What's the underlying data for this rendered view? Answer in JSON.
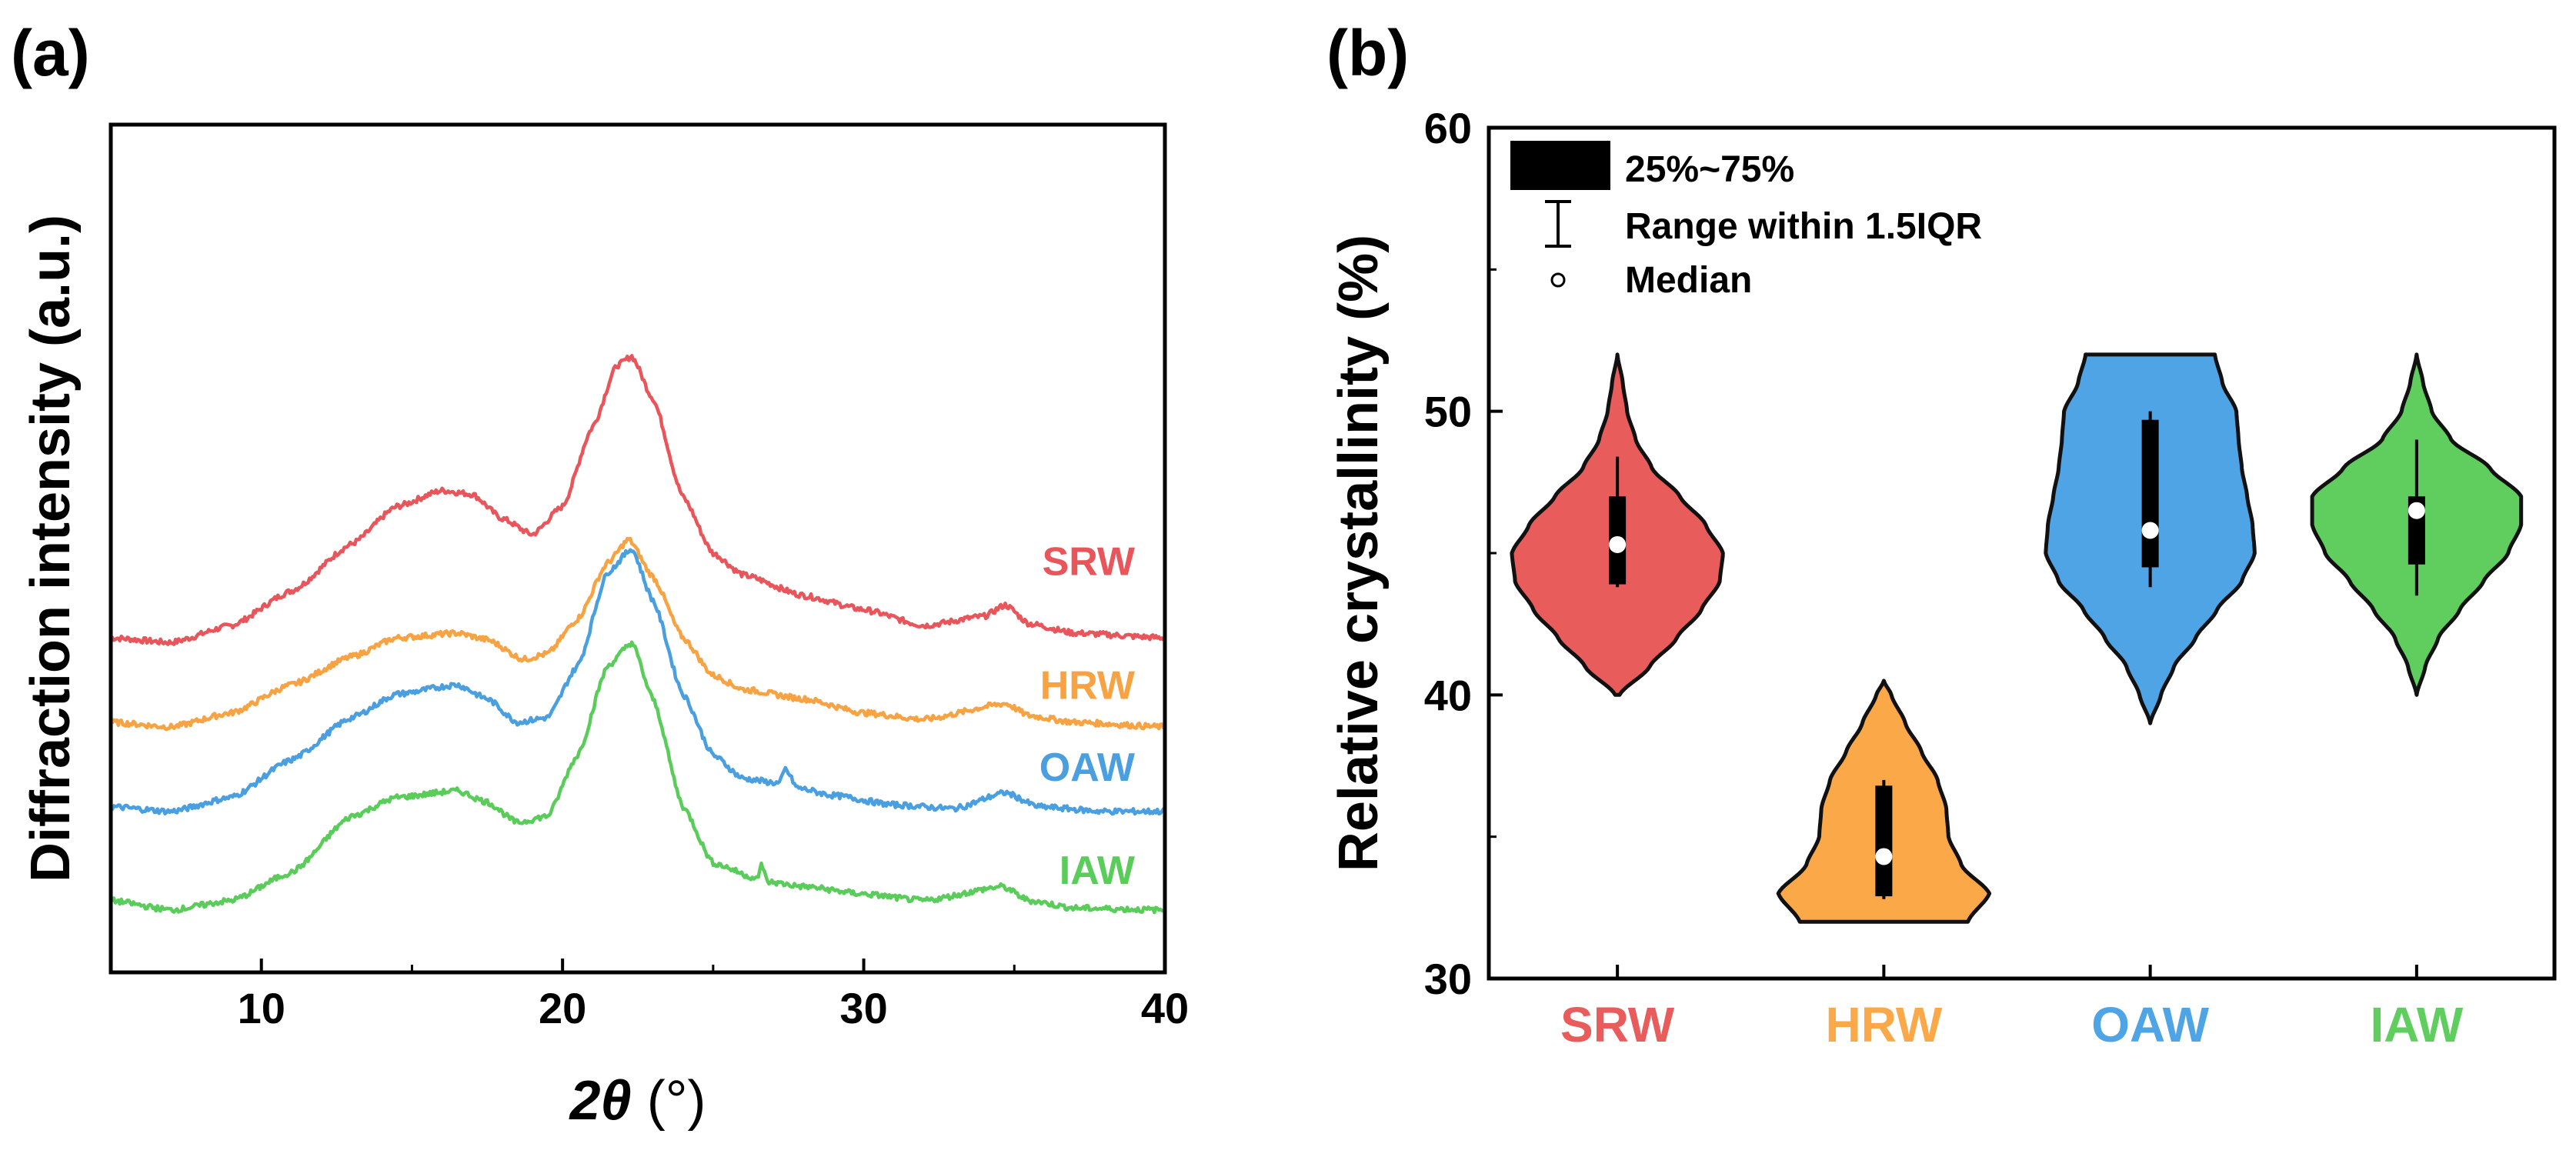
{
  "chart_data": [
    {
      "panel": "(a)",
      "type": "line",
      "xlabel_main": "2θ",
      "xlabel_unit": " (°)",
      "ylabel": "Diffraction intensity (a.u.)",
      "xlim": [
        5,
        40
      ],
      "xticks": [
        "10",
        "20",
        "30",
        "40"
      ],
      "xtick_values": [
        10,
        20,
        30,
        40
      ],
      "yticks": [],
      "series": [
        {
          "name": "SRW",
          "color": "#e8555a",
          "offset": 3.4,
          "points": [
            [
              5,
              0.05
            ],
            [
              7,
              0.0
            ],
            [
              9,
              0.18
            ],
            [
              11,
              0.55
            ],
            [
              13,
              1.05
            ],
            [
              14.5,
              1.45
            ],
            [
              16,
              1.62
            ],
            [
              17,
              1.58
            ],
            [
              18,
              1.32
            ],
            [
              19,
              1.15
            ],
            [
              20,
              1.45
            ],
            [
              21,
              2.3
            ],
            [
              21.8,
              2.95
            ],
            [
              22.3,
              3.05
            ],
            [
              23,
              2.6
            ],
            [
              24,
              1.55
            ],
            [
              25,
              0.95
            ],
            [
              26,
              0.72
            ],
            [
              28,
              0.5
            ],
            [
              30,
              0.35
            ],
            [
              32,
              0.18
            ],
            [
              34,
              0.28
            ],
            [
              34.7,
              0.4
            ],
            [
              35.5,
              0.2
            ],
            [
              37,
              0.1
            ],
            [
              40,
              0.05
            ]
          ]
        },
        {
          "name": "HRW",
          "color": "#f7a343",
          "offset": 2.5,
          "points": [
            [
              5,
              0.05
            ],
            [
              7,
              0.0
            ],
            [
              9,
              0.15
            ],
            [
              11,
              0.45
            ],
            [
              13,
              0.75
            ],
            [
              14.5,
              0.95
            ],
            [
              16.5,
              1.0
            ],
            [
              17.5,
              0.93
            ],
            [
              18.7,
              0.72
            ],
            [
              19.5,
              0.78
            ],
            [
              20.5,
              1.15
            ],
            [
              21.5,
              1.75
            ],
            [
              22.2,
              2.0
            ],
            [
              23,
              1.6
            ],
            [
              24,
              0.95
            ],
            [
              25,
              0.55
            ],
            [
              26,
              0.4
            ],
            [
              28,
              0.3
            ],
            [
              30,
              0.15
            ],
            [
              32,
              0.08
            ],
            [
              34.7,
              0.25
            ],
            [
              35.5,
              0.12
            ],
            [
              37,
              0.05
            ],
            [
              40,
              0.0
            ]
          ]
        },
        {
          "name": "OAW",
          "color": "#4a9fe0",
          "offset": 1.55,
          "points": [
            [
              5,
              0.1
            ],
            [
              7,
              0.05
            ],
            [
              9,
              0.2
            ],
            [
              11,
              0.6
            ],
            [
              13,
              1.05
            ],
            [
              14.5,
              1.3
            ],
            [
              16.5,
              1.4
            ],
            [
              17.5,
              1.25
            ],
            [
              18.5,
              1.0
            ],
            [
              19.5,
              1.05
            ],
            [
              20.5,
              1.6
            ],
            [
              21.5,
              2.6
            ],
            [
              22.3,
              2.85
            ],
            [
              23,
              2.3
            ],
            [
              24,
              1.3
            ],
            [
              25,
              0.65
            ],
            [
              26,
              0.4
            ],
            [
              27.2,
              0.35
            ],
            [
              27.4,
              0.5
            ],
            [
              27.8,
              0.3
            ],
            [
              29,
              0.22
            ],
            [
              31,
              0.12
            ],
            [
              33,
              0.08
            ],
            [
              34.7,
              0.25
            ],
            [
              35.8,
              0.1
            ],
            [
              38,
              0.05
            ],
            [
              40,
              0.05
            ]
          ]
        },
        {
          "name": "IAW",
          "color": "#5acc5a",
          "offset": 0.6,
          "points": [
            [
              5,
              0.05
            ],
            [
              7,
              -0.05
            ],
            [
              9,
              0.05
            ],
            [
              11,
              0.35
            ],
            [
              13,
              0.95
            ],
            [
              14.5,
              1.15
            ],
            [
              16.5,
              1.22
            ],
            [
              17.5,
              1.1
            ],
            [
              18.5,
              0.88
            ],
            [
              19.5,
              0.95
            ],
            [
              20.5,
              1.6
            ],
            [
              21.5,
              2.55
            ],
            [
              22.3,
              2.8
            ],
            [
              23,
              2.2
            ],
            [
              24,
              1.05
            ],
            [
              25,
              0.45
            ],
            [
              26.5,
              0.28
            ],
            [
              26.6,
              0.45
            ],
            [
              26.8,
              0.25
            ],
            [
              28,
              0.2
            ],
            [
              30,
              0.12
            ],
            [
              32,
              0.05
            ],
            [
              34.6,
              0.2
            ],
            [
              35.5,
              0.05
            ],
            [
              37,
              -0.03
            ],
            [
              40,
              -0.05
            ]
          ]
        }
      ]
    },
    {
      "panel": "(b)",
      "type": "violin",
      "ylabel": "Relative crystallinity (%)",
      "ylim": [
        30,
        60
      ],
      "yticks": [
        "30",
        "40",
        "50",
        "60"
      ],
      "ytick_values": [
        30,
        40,
        50,
        60
      ],
      "categories": [
        "SRW",
        "HRW",
        "OAW",
        "IAW"
      ],
      "legend": {
        "box_label": "25%~75%",
        "whisker_label": "Range within 1.5IQR",
        "median_label": "Median"
      },
      "groups": [
        {
          "name": "SRW",
          "color": "#e85c5c",
          "min": 40,
          "max": 52,
          "q1": 43.9,
          "q3": 47.0,
          "wlo": 43.8,
          "whi": 48.4,
          "median": 45.3,
          "profile": [
            [
              40,
              0.02
            ],
            [
              41,
              0.3
            ],
            [
              42,
              0.55
            ],
            [
              43,
              0.78
            ],
            [
              44,
              0.95
            ],
            [
              45,
              0.98
            ],
            [
              46,
              0.82
            ],
            [
              47,
              0.58
            ],
            [
              48,
              0.32
            ],
            [
              49,
              0.17
            ],
            [
              50,
              0.09
            ],
            [
              51,
              0.05
            ],
            [
              52,
              0.0
            ]
          ]
        },
        {
          "name": "HRW",
          "color": "#fba848",
          "min": 32,
          "max": 40.5,
          "q1": 32.9,
          "q3": 36.8,
          "wlo": 32.8,
          "whi": 37.0,
          "median": 34.3,
          "profile": [
            [
              32,
              0.78
            ],
            [
              33,
              0.98
            ],
            [
              34,
              0.72
            ],
            [
              35,
              0.6
            ],
            [
              36,
              0.58
            ],
            [
              37,
              0.5
            ],
            [
              38,
              0.35
            ],
            [
              39,
              0.2
            ],
            [
              40,
              0.07
            ],
            [
              40.5,
              0.0
            ]
          ]
        },
        {
          "name": "OAW",
          "color": "#4ea4e4",
          "min": 39,
          "max": 52,
          "q1": 44.5,
          "q3": 49.7,
          "wlo": 43.8,
          "whi": 50.0,
          "median": 45.8,
          "profile": [
            [
              39,
              0.0
            ],
            [
              40,
              0.1
            ],
            [
              41,
              0.22
            ],
            [
              42,
              0.42
            ],
            [
              43,
              0.62
            ],
            [
              44,
              0.85
            ],
            [
              45,
              0.97
            ],
            [
              46,
              0.95
            ],
            [
              47,
              0.9
            ],
            [
              48,
              0.85
            ],
            [
              49,
              0.82
            ],
            [
              50,
              0.8
            ],
            [
              51,
              0.67
            ],
            [
              52,
              0.6
            ]
          ]
        },
        {
          "name": "IAW",
          "color": "#5fce5f",
          "min": 40,
          "max": 52,
          "q1": 44.6,
          "q3": 47.0,
          "wlo": 43.5,
          "whi": 49.0,
          "median": 46.5,
          "profile": [
            [
              40,
              0.0
            ],
            [
              41,
              0.08
            ],
            [
              42,
              0.2
            ],
            [
              43,
              0.4
            ],
            [
              44,
              0.62
            ],
            [
              45,
              0.85
            ],
            [
              46,
              0.97
            ],
            [
              47,
              0.97
            ],
            [
              48,
              0.68
            ],
            [
              49,
              0.32
            ],
            [
              50,
              0.14
            ],
            [
              51,
              0.06
            ],
            [
              52,
              0.0
            ]
          ]
        }
      ]
    }
  ]
}
